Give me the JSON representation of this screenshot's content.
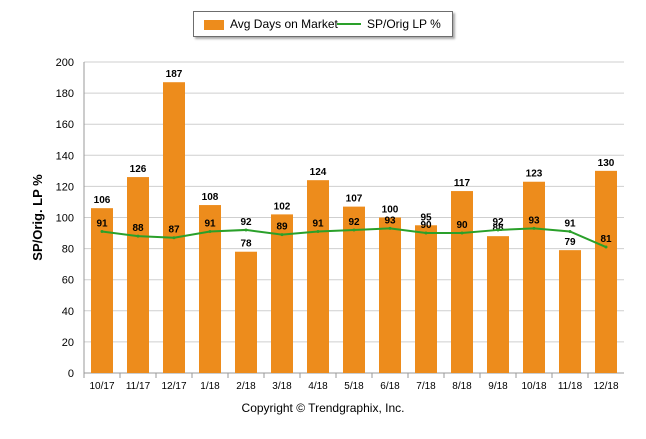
{
  "chart_data": {
    "type": "bar",
    "categories": [
      "10/17",
      "11/17",
      "12/17",
      "1/18",
      "2/18",
      "3/18",
      "4/18",
      "5/18",
      "6/18",
      "7/18",
      "8/18",
      "9/18",
      "10/18",
      "11/18",
      "12/18"
    ],
    "series": [
      {
        "name": "Avg Days on Market",
        "type": "bar",
        "values": [
          106,
          126,
          187,
          108,
          78,
          102,
          124,
          107,
          100,
          95,
          117,
          88,
          123,
          79,
          130
        ]
      },
      {
        "name": "SP/Orig LP %",
        "type": "line",
        "values": [
          91,
          88,
          87,
          91,
          92,
          89,
          91,
          92,
          93,
          90,
          90,
          92,
          93,
          91,
          81
        ]
      }
    ],
    "ylabel": "SP/Orig. LP %",
    "ylim": [
      0,
      200
    ],
    "yticks": [
      0,
      20,
      40,
      60,
      80,
      100,
      120,
      140,
      160,
      180,
      200
    ],
    "grid": true,
    "legend_position": "top-center"
  },
  "colors": {
    "bar": "#ed8c1c",
    "line": "#2aa02a",
    "grid": "#cfcfcf",
    "axis": "#999999"
  },
  "footer": "Copyright © Trendgraphix, Inc."
}
